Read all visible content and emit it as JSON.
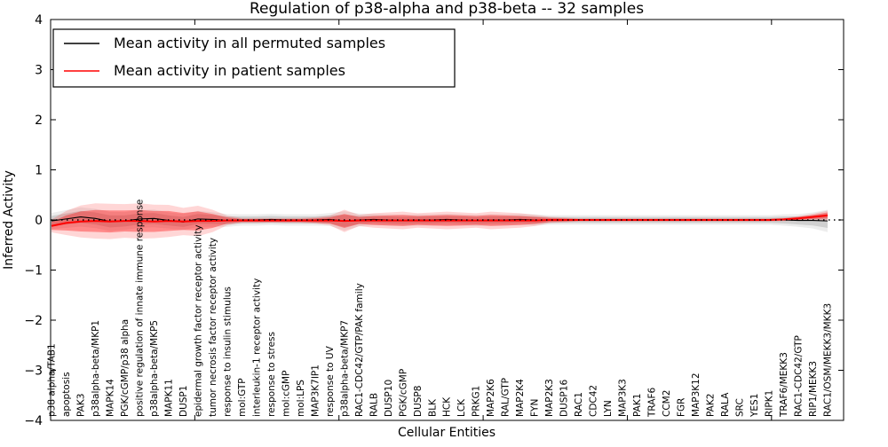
{
  "chart_data": {
    "type": "line",
    "title": "Regulation of p38-alpha and p38-beta -- 32 samples",
    "xlabel": "Cellular Entities",
    "ylabel": "Inferred Activity",
    "ylim": [
      -4,
      4
    ],
    "yticks": [
      -4,
      -3,
      -2,
      -1,
      0,
      1,
      2,
      3,
      4
    ],
    "xlim": [
      0,
      55
    ],
    "xtick_positions": [
      10,
      20,
      30,
      40,
      50
    ],
    "grid": false,
    "zero_line": true,
    "legend_position": "upper left",
    "categories": [
      "p38 alpha/TAB1",
      "apoptosis",
      "PAK3",
      "p38alpha-beta/MKP1",
      "MAPK14",
      "PGK/cGMP/p38 alpha",
      "positive regulation of innate immune response",
      "p38alpha-beta/MKP5",
      "MAPK11",
      "DUSP1",
      "epidermal growth factor receptor activity",
      "tumor necrosis factor receptor activity",
      "response to insulin stimulus",
      "mol:GTP",
      "interleukin-1 receptor activity",
      "response to stress",
      "mol:cGMP",
      "mol:LPS",
      "MAP3K7IP1",
      "response to UV",
      "p38alpha-beta/MKP7",
      "RAC1-CDC42/GTP/PAK family",
      "RALB",
      "DUSP10",
      "PGK/cGMP",
      "DUSP8",
      "BLK",
      "HCK",
      "LCK",
      "PRKG1",
      "MAP2K6",
      "RAL/GTP",
      "MAP2K4",
      "FYN",
      "MAP2K3",
      "DUSP16",
      "RAC1",
      "CDC42",
      "LYN",
      "MAP3K3",
      "PAK1",
      "TRAF6",
      "CCM2",
      "FGR",
      "MAP3K12",
      "PAK2",
      "RALA",
      "SRC",
      "YES1",
      "RIPK1",
      "TRAF6/MEKK3",
      "RAC1-CDC42/GTP",
      "RIP1/MEKK3",
      "RAC1/OSM/MEKK3/MKK3"
    ],
    "series": [
      {
        "name": "Mean activity in all permuted samples",
        "color": "#000000",
        "band_color": "#808080",
        "values": [
          -0.02,
          0.02,
          0.06,
          0.03,
          -0.03,
          -0.02,
          0.02,
          0.03,
          -0.01,
          -0.04,
          0.02,
          0.01,
          -0.01,
          0,
          0,
          0.01,
          0,
          0,
          0,
          0.01,
          -0.02,
          0,
          0.01,
          0,
          -0.01,
          0,
          0,
          0.01,
          0,
          -0.01,
          0,
          0,
          0.01,
          0,
          0,
          0,
          0,
          0,
          0,
          0,
          0,
          0,
          0,
          0,
          0,
          0,
          0,
          0,
          0,
          0,
          0,
          -0.01,
          -0.01,
          -0.02
        ],
        "std": [
          0.1,
          0.11,
          0.12,
          0.12,
          0.12,
          0.11,
          0.11,
          0.11,
          0.1,
          0.1,
          0.1,
          0.09,
          0.08,
          0.07,
          0.07,
          0.07,
          0.07,
          0.07,
          0.07,
          0.08,
          0.12,
          0.08,
          0.07,
          0.07,
          0.07,
          0.07,
          0.07,
          0.07,
          0.07,
          0.07,
          0.07,
          0.07,
          0.07,
          0.07,
          0.06,
          0.06,
          0.06,
          0.06,
          0.06,
          0.06,
          0.06,
          0.06,
          0.06,
          0.06,
          0.06,
          0.06,
          0.06,
          0.06,
          0.06,
          0.06,
          0.07,
          0.08,
          0.1,
          0.14
        ]
      },
      {
        "name": "Mean activity in patient samples",
        "color": "#ff0000",
        "band_color": "#ff0000",
        "values": [
          -0.12,
          -0.06,
          -0.03,
          -0.02,
          -0.03,
          -0.02,
          -0.02,
          -0.03,
          -0.02,
          -0.03,
          -0.02,
          -0.02,
          -0.01,
          -0.01,
          -0.01,
          -0.01,
          -0.01,
          -0.01,
          -0.01,
          -0.01,
          -0.02,
          -0.01,
          -0.01,
          -0.01,
          -0.01,
          -0.01,
          -0.01,
          -0.01,
          -0.01,
          -0.01,
          -0.01,
          -0.01,
          -0.01,
          -0.01,
          0,
          0,
          0,
          0,
          0,
          0,
          0,
          0,
          0,
          0,
          0,
          0,
          0,
          0,
          0,
          0,
          0.01,
          0.03,
          0.06,
          0.09
        ],
        "std": [
          0.08,
          0.15,
          0.2,
          0.22,
          0.22,
          0.21,
          0.22,
          0.21,
          0.2,
          0.17,
          0.19,
          0.14,
          0.06,
          0.03,
          0.03,
          0.03,
          0.03,
          0.03,
          0.04,
          0.06,
          0.14,
          0.07,
          0.09,
          0.1,
          0.11,
          0.09,
          0.1,
          0.11,
          0.1,
          0.09,
          0.11,
          0.1,
          0.09,
          0.07,
          0.04,
          0.03,
          0.02,
          0.02,
          0.02,
          0.02,
          0.02,
          0.02,
          0.02,
          0.02,
          0.02,
          0.02,
          0.02,
          0.02,
          0.02,
          0.02,
          0.02,
          0.03,
          0.04,
          0.06
        ]
      }
    ]
  }
}
